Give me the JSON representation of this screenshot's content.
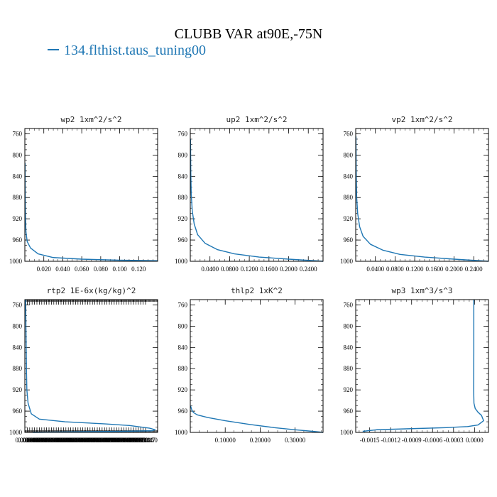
{
  "figure": {
    "title": "CLUBB VAR at90E,-75N",
    "legend_label": "134.flthist.taus_tuning00",
    "series_color": "#1f77b4"
  },
  "chart_data": [
    {
      "type": "line",
      "title": "wp2   1xm^2/s^2",
      "ylim": [
        1000,
        750
      ],
      "xlim": [
        0,
        0.14
      ],
      "y_ticks": [
        "760",
        "800",
        "840",
        "880",
        "920",
        "960",
        "1000"
      ],
      "x_ticks": [
        "0.020",
        "0.040",
        "0.060",
        "0.080",
        "0.100",
        "0.120"
      ],
      "x_tick_values": [
        0.02,
        0.04,
        0.06,
        0.08,
        0.1,
        0.12
      ],
      "series": [
        {
          "x": [
            0.0002,
            0.0003,
            0.0005,
            0.0008,
            0.0012,
            0.0025,
            0.006,
            0.014,
            0.03,
            0.06,
            0.1,
            0.14
          ],
          "y": [
            815,
            860,
            900,
            925,
            945,
            963,
            975,
            986,
            993,
            996,
            998,
            999
          ]
        }
      ]
    },
    {
      "type": "line",
      "title": "up2   1xm^2/s^2",
      "ylim": [
        1000,
        750
      ],
      "xlim": [
        0,
        0.27
      ],
      "y_ticks": [
        "760",
        "800",
        "840",
        "880",
        "920",
        "960",
        "1000"
      ],
      "x_ticks": [
        "0.0400",
        "0.0800",
        "0.1200",
        "0.1600",
        "0.2000",
        "0.2400"
      ],
      "x_tick_values": [
        0.04,
        0.08,
        0.12,
        0.16,
        0.2,
        0.24
      ],
      "series": [
        {
          "x": [
            0.0005,
            0.001,
            0.002,
            0.004,
            0.008,
            0.015,
            0.03,
            0.055,
            0.09,
            0.14,
            0.2,
            0.27
          ],
          "y": [
            770,
            830,
            875,
            905,
            930,
            950,
            966,
            978,
            986,
            992,
            996,
            1000
          ]
        }
      ]
    },
    {
      "type": "line",
      "title": "vp2   1xm^2/s^2",
      "ylim": [
        1000,
        750
      ],
      "xlim": [
        0,
        0.27
      ],
      "y_ticks": [
        "760",
        "800",
        "840",
        "880",
        "920",
        "960",
        "1000"
      ],
      "x_ticks": [
        "0.0400",
        "0.0800",
        "0.1200",
        "0.1600",
        "0.2000",
        "0.2400"
      ],
      "x_tick_values": [
        0.04,
        0.08,
        0.12,
        0.16,
        0.2,
        0.24
      ],
      "series": [
        {
          "x": [
            0.0005,
            0.001,
            0.002,
            0.004,
            0.008,
            0.015,
            0.03,
            0.055,
            0.09,
            0.14,
            0.2,
            0.27
          ],
          "y": [
            765,
            830,
            880,
            910,
            935,
            953,
            968,
            979,
            987,
            992,
            996,
            1000
          ]
        }
      ]
    },
    {
      "type": "line",
      "title": "rtp2   1E-6x(kg/kg)^2",
      "ylim": [
        1000,
        750
      ],
      "xlim": [
        0,
        0.000165
      ],
      "y_ticks": [
        "760",
        "800",
        "840",
        "880",
        "920",
        "960",
        "1000"
      ],
      "x_ticks": [
        "0.000003",
        "0.000006",
        "0.000009",
        "0.000012",
        "0.000015",
        "0.000018",
        "0.000021",
        "0.000024",
        "0.000027",
        "0.000030",
        "0.000033",
        "0.000036",
        "0.000039",
        "0.000042",
        "0.000045",
        "0.000048",
        "0.000051",
        "0.000054",
        "0.000057",
        "0.000060",
        "0.000063",
        "0.000066",
        "0.000069",
        "0.000072",
        "0.000075",
        "0.000078",
        "0.000081",
        "0.000084",
        "0.000087",
        "0.000090",
        "0.000093",
        "0.000096",
        "0.000099",
        "0.000102",
        "0.000105",
        "0.000108",
        "0.000111",
        "0.000114",
        "0.000117",
        "0.000120",
        "0.000123",
        "0.000126",
        "0.000129",
        "0.000132",
        "0.000135",
        "0.000138",
        "0.000141",
        "0.000144",
        "0.000147",
        "0.000150"
      ],
      "x_tick_values": [
        3e-06,
        6e-06,
        9e-06,
        1.2e-05,
        1.5e-05,
        1.8e-05,
        2.1e-05,
        2.4e-05,
        2.7e-05,
        3e-05,
        3.3e-05,
        3.6e-05,
        3.9e-05,
        4.2e-05,
        4.5e-05,
        4.8e-05,
        5.1e-05,
        5.4e-05,
        5.7e-05,
        6e-05,
        6.3e-05,
        6.6e-05,
        6.9e-05,
        7.2e-05,
        7.5e-05,
        7.8e-05,
        8.1e-05,
        8.4e-05,
        8.7e-05,
        9e-05,
        9.3e-05,
        9.6e-05,
        9.9e-05,
        0.000102,
        0.000105,
        0.000108,
        0.000111,
        0.000114,
        0.000117,
        0.00012,
        0.000123,
        0.000126,
        0.000129,
        0.000132,
        0.000135,
        0.000138,
        0.000141,
        0.000144,
        0.000147,
        0.00015
      ],
      "series": [
        {
          "x": [
            1e-06,
            1.5e-06,
            2e-06,
            2.5e-06,
            4e-06,
            8e-06,
            1.8e-05,
            5e-05,
            0.0001,
            0.00013,
            0.000155,
            0.000162,
            0.000158,
            0.00012,
            6e-05,
            1e-05
          ],
          "y": [
            750,
            820,
            880,
            920,
            945,
            965,
            975,
            980,
            984,
            987,
            992,
            995,
            997,
            998,
            999,
            1000
          ]
        }
      ]
    },
    {
      "type": "line",
      "title": "thlp2   1xK^2",
      "ylim": [
        1000,
        750
      ],
      "xlim": [
        0,
        0.38
      ],
      "y_ticks": [
        "760",
        "800",
        "840",
        "880",
        "920",
        "960",
        "1000"
      ],
      "x_ticks": [
        "0.10000",
        "0.20000",
        "0.30000"
      ],
      "x_tick_values": [
        0.1,
        0.2,
        0.3
      ],
      "series": [
        {
          "x": [
            0.001,
            0.003,
            0.006,
            0.01,
            0.02,
            0.05,
            0.1,
            0.17,
            0.24,
            0.3,
            0.35,
            0.38
          ],
          "y": [
            950,
            955,
            960,
            963,
            967,
            972,
            978,
            985,
            991,
            995,
            998,
            1000
          ]
        }
      ]
    },
    {
      "type": "line",
      "title": "wp3   1xm^3/s^3",
      "ylim": [
        1000,
        750
      ],
      "xlim": [
        -0.0017,
        0.0002
      ],
      "y_ticks": [
        "760",
        "800",
        "840",
        "880",
        "920",
        "960",
        "1000"
      ],
      "x_ticks": [
        "-0.0015",
        "-0.0012",
        "-0.0009",
        "-0.0006",
        "-0.0003",
        "0.0000"
      ],
      "x_tick_values": [
        -0.0015,
        -0.0012,
        -0.0009,
        -0.0006,
        -0.0003,
        0
      ],
      "series": [
        {
          "x": [
            -1e-05,
            -1e-05,
            -1.2e-05,
            -8e-06,
            1e-05,
            5e-05,
            0.0001,
            0.00013,
            5e-05,
            -0.0001,
            -0.0004,
            -0.0009,
            -0.0014,
            -0.0016
          ],
          "y": [
            750,
            850,
            920,
            945,
            955,
            962,
            968,
            978,
            986,
            989,
            991,
            993,
            995,
            998
          ]
        }
      ]
    }
  ]
}
